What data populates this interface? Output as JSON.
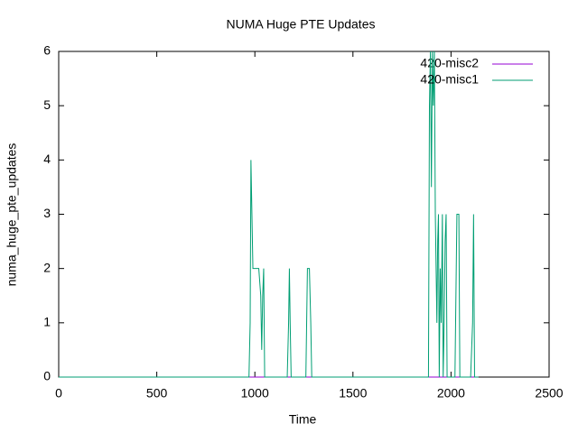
{
  "chart_data": {
    "type": "line",
    "title": "NUMA Huge PTE Updates",
    "x_label": "Time",
    "y_label": "numa_huge_pte_updates",
    "xlim": [
      0,
      2500
    ],
    "ylim": [
      0,
      6
    ],
    "xticks": [
      0,
      500,
      1000,
      1500,
      2000,
      2500
    ],
    "yticks": [
      0,
      1,
      2,
      3,
      4,
      5,
      6
    ],
    "legend": "top-right",
    "series": [
      {
        "name": "420-misc2",
        "color": "#9400d3",
        "x": [
          0,
          2140
        ],
        "values": [
          0,
          0
        ]
      },
      {
        "name": "420-misc1",
        "color": "#009e73",
        "x": [
          0,
          970,
          976,
          980,
          985,
          990,
          1000,
          1020,
          1030,
          1035,
          1040,
          1045,
          1050,
          1060,
          1165,
          1172,
          1176,
          1180,
          1185,
          1260,
          1268,
          1278,
          1285,
          1290,
          1885,
          1890,
          1895,
          1900,
          1905,
          1910,
          1915,
          1920,
          1928,
          1932,
          1936,
          1940,
          1945,
          1950,
          1956,
          1960,
          1965,
          1970,
          1975,
          1980,
          2020,
          2030,
          2040,
          2045,
          2100,
          2110,
          2115,
          2120,
          2140
        ],
        "values": [
          0,
          0,
          1,
          4,
          3,
          2,
          2,
          2,
          1.5,
          0.5,
          1.5,
          2,
          0,
          0,
          0,
          1,
          2,
          1,
          0,
          0,
          2,
          2,
          1,
          0,
          0,
          5,
          6,
          3.5,
          6,
          5,
          6,
          3,
          1,
          2.5,
          3,
          0,
          2,
          1,
          3,
          0,
          1,
          2.5,
          3,
          0,
          0,
          3,
          3,
          0,
          0,
          1,
          3,
          0,
          0
        ]
      }
    ]
  }
}
